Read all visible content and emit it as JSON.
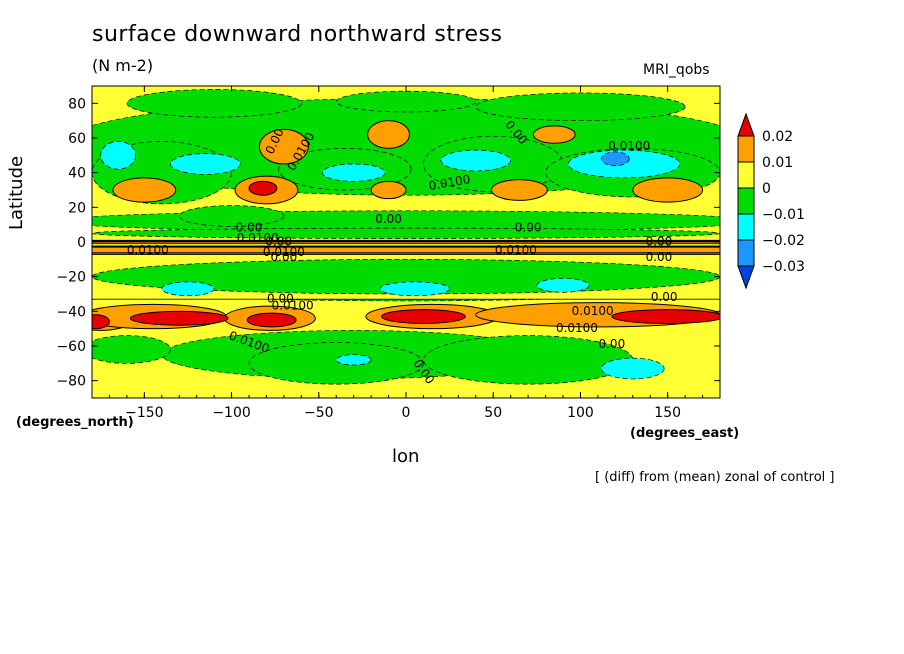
{
  "chart_data": {
    "type": "contour",
    "title": "surface downward northward stress",
    "units": "(N m-2)",
    "model": "MRI_qobs",
    "note": "[ (diff) from (mean) zonal of control ]",
    "xlabel": "lon",
    "ylabel": "Latitude",
    "x_unit": "(degrees_east)",
    "y_unit": "(degrees_north)",
    "xlim": [
      -180,
      180
    ],
    "ylim": [
      -90,
      90
    ],
    "x_ticks": [
      -150,
      -100,
      -50,
      0,
      50,
      100,
      150
    ],
    "y_ticks": [
      -80,
      -60,
      -40,
      -20,
      0,
      20,
      40,
      60,
      80
    ],
    "colorbar": {
      "levels": [
        -0.03,
        -0.02,
        -0.01,
        0,
        0.01,
        0.02
      ],
      "labels": [
        "0.02",
        "0.01",
        "0",
        "−0.01",
        "−0.02",
        "−0.03"
      ],
      "colors": [
        "#e60000",
        "#ff9f00",
        "#ffff33",
        "#00dc00",
        "#00ffff",
        "#1e96ff",
        "#0046dc"
      ]
    },
    "background_color": "#ffff33",
    "regions": [
      {
        "level": 0.01,
        "lon": -175,
        "lat": -45,
        "rx": 18,
        "ry": 6
      },
      {
        "level": 0.01,
        "lon": -145,
        "lat": -43,
        "rx": 42,
        "ry": 7
      },
      {
        "level": 0.01,
        "lon": -78,
        "lat": -44,
        "rx": 26,
        "ry": 7
      },
      {
        "level": 0.01,
        "lon": 15,
        "lat": -43,
        "rx": 38,
        "ry": 7
      },
      {
        "level": 0.01,
        "lon": 110,
        "lat": -42,
        "rx": 70,
        "ry": 7
      },
      {
        "level": 0.02,
        "lon": -130,
        "lat": -44,
        "rx": 28,
        "ry": 4
      },
      {
        "level": 0.02,
        "lon": -77,
        "lat": -45,
        "rx": 14,
        "ry": 4
      },
      {
        "level": 0.02,
        "lon": 10,
        "lat": -43,
        "rx": 24,
        "ry": 4
      },
      {
        "level": 0.02,
        "lon": 150,
        "lat": -43,
        "rx": 32,
        "ry": 4
      },
      {
        "level": 0.02,
        "lon": -178,
        "lat": -46,
        "rx": 8,
        "ry": 4
      },
      {
        "level": -0.01,
        "lon": -110,
        "lat": 80,
        "rx": 50,
        "ry": 8
      },
      {
        "level": -0.01,
        "lon": 0,
        "lat": 81,
        "rx": 40,
        "ry": 6
      },
      {
        "level": -0.01,
        "lon": 100,
        "lat": 78,
        "rx": 60,
        "ry": 8
      },
      {
        "level": -0.01,
        "lon": -140,
        "lat": 40,
        "rx": 40,
        "ry": 18
      },
      {
        "level": -0.01,
        "lon": -35,
        "lat": 42,
        "rx": 38,
        "ry": 12
      },
      {
        "level": -0.01,
        "lon": 50,
        "lat": 45,
        "rx": 40,
        "ry": 16
      },
      {
        "level": -0.01,
        "lon": 130,
        "lat": 40,
        "rx": 50,
        "ry": 14
      },
      {
        "level": -0.01,
        "lon": -100,
        "lat": 15,
        "rx": 30,
        "ry": 6
      },
      {
        "level": -0.01,
        "lon": 0,
        "lat": 5,
        "rx": 180,
        "ry": 3
      },
      {
        "level": -0.01,
        "lon": 0,
        "lat": -20,
        "rx": 180,
        "ry": 10
      },
      {
        "level": -0.01,
        "lon": -40,
        "lat": -70,
        "rx": 50,
        "ry": 12
      },
      {
        "level": -0.01,
        "lon": 70,
        "lat": -68,
        "rx": 60,
        "ry": 14
      },
      {
        "level": -0.01,
        "lon": -160,
        "lat": -62,
        "rx": 25,
        "ry": 8
      },
      {
        "level": -0.02,
        "lon": -165,
        "lat": 50,
        "rx": 10,
        "ry": 8
      },
      {
        "level": -0.02,
        "lon": -115,
        "lat": 45,
        "rx": 20,
        "ry": 6
      },
      {
        "level": -0.02,
        "lon": -30,
        "lat": 40,
        "rx": 18,
        "ry": 5
      },
      {
        "level": -0.02,
        "lon": 40,
        "lat": 47,
        "rx": 20,
        "ry": 6
      },
      {
        "level": -0.02,
        "lon": 125,
        "lat": 45,
        "rx": 32,
        "ry": 8
      },
      {
        "level": -0.02,
        "lon": -125,
        "lat": -27,
        "rx": 15,
        "ry": 4
      },
      {
        "level": -0.02,
        "lon": 5,
        "lat": -27,
        "rx": 20,
        "ry": 4
      },
      {
        "level": -0.02,
        "lon": 90,
        "lat": -25,
        "rx": 15,
        "ry": 4
      },
      {
        "level": -0.02,
        "lon": 130,
        "lat": -73,
        "rx": 18,
        "ry": 6
      },
      {
        "level": -0.02,
        "lon": -30,
        "lat": -68,
        "rx": 10,
        "ry": 3
      },
      {
        "level": -0.03,
        "lon": 120,
        "lat": 48,
        "rx": 8,
        "ry": 4
      },
      {
        "level": 0.01,
        "lon": -150,
        "lat": 30,
        "rx": 18,
        "ry": 7
      },
      {
        "level": 0.01,
        "lon": -80,
        "lat": 30,
        "rx": 18,
        "ry": 8
      },
      {
        "level": 0.01,
        "lon": -70,
        "lat": 55,
        "rx": 14,
        "ry": 10
      },
      {
        "level": 0.01,
        "lon": -10,
        "lat": 62,
        "rx": 12,
        "ry": 8
      },
      {
        "level": 0.01,
        "lon": 65,
        "lat": 30,
        "rx": 16,
        "ry": 6
      },
      {
        "level": 0.01,
        "lon": 85,
        "lat": 62,
        "rx": 12,
        "ry": 5
      },
      {
        "level": 0.01,
        "lon": 150,
        "lat": 30,
        "rx": 20,
        "ry": 7
      },
      {
        "level": 0.01,
        "lon": -10,
        "lat": 30,
        "rx": 10,
        "ry": 5
      },
      {
        "level": 0.02,
        "lon": -82,
        "lat": 31,
        "rx": 8,
        "ry": 4
      }
    ],
    "zonal_bands": [
      {
        "level": 0.0,
        "lat_from": -33,
        "lat_to": 1
      },
      {
        "level": 0.01,
        "lat_from": -1,
        "lat_to": 0
      },
      {
        "level": 0.01,
        "lat_from": -6,
        "lat_to": -3
      }
    ],
    "contour_labels": [
      {
        "text": "0.00",
        "lon": -75,
        "lat": 58,
        "rotate": -65
      },
      {
        "text": "0.0100",
        "lon": -60,
        "lat": 52,
        "rotate": -60
      },
      {
        "text": "0.00",
        "lon": 63,
        "lat": 63,
        "rotate": 50
      },
      {
        "text": "0.0100",
        "lon": 128,
        "lat": 55,
        "rotate": 0
      },
      {
        "text": "0.0100",
        "lon": 25,
        "lat": 34,
        "rotate": -10
      },
      {
        "text": "0.00",
        "lon": -10,
        "lat": 13,
        "rotate": 0
      },
      {
        "text": "0.00",
        "lon": -90,
        "lat": 8,
        "rotate": 0
      },
      {
        "text": "0.0100",
        "lon": -85,
        "lat": 2,
        "rotate": 0
      },
      {
        "text": "0.00",
        "lon": -73,
        "lat": 0,
        "rotate": 0
      },
      {
        "text": "0.0100",
        "lon": -148,
        "lat": -5,
        "rotate": 0
      },
      {
        "text": "0.0100",
        "lon": -70,
        "lat": -6,
        "rotate": 0
      },
      {
        "text": "0.00",
        "lon": -70,
        "lat": -9,
        "rotate": 0
      },
      {
        "text": "0.00",
        "lon": 70,
        "lat": 8,
        "rotate": 0
      },
      {
        "text": "0.0100",
        "lon": 63,
        "lat": -5,
        "rotate": 0
      },
      {
        "text": "0.00",
        "lon": 145,
        "lat": 0,
        "rotate": 0
      },
      {
        "text": "0.00",
        "lon": 145,
        "lat": -9,
        "rotate": 0
      },
      {
        "text": "0.00",
        "lon": -72,
        "lat": -33,
        "rotate": 0
      },
      {
        "text": "0.0100",
        "lon": -65,
        "lat": -37,
        "rotate": 0
      },
      {
        "text": "0.0100",
        "lon": -90,
        "lat": -58,
        "rotate": 20
      },
      {
        "text": "0.0100",
        "lon": 107,
        "lat": -40,
        "rotate": 0
      },
      {
        "text": "0.0100",
        "lon": 98,
        "lat": -50,
        "rotate": 0
      },
      {
        "text": "0.00",
        "lon": 148,
        "lat": -32,
        "rotate": 0
      },
      {
        "text": "0.00",
        "lon": 118,
        "lat": -59,
        "rotate": 0
      },
      {
        "text": "0.00",
        "lon": 10,
        "lat": -75,
        "rotate": 55
      }
    ]
  }
}
